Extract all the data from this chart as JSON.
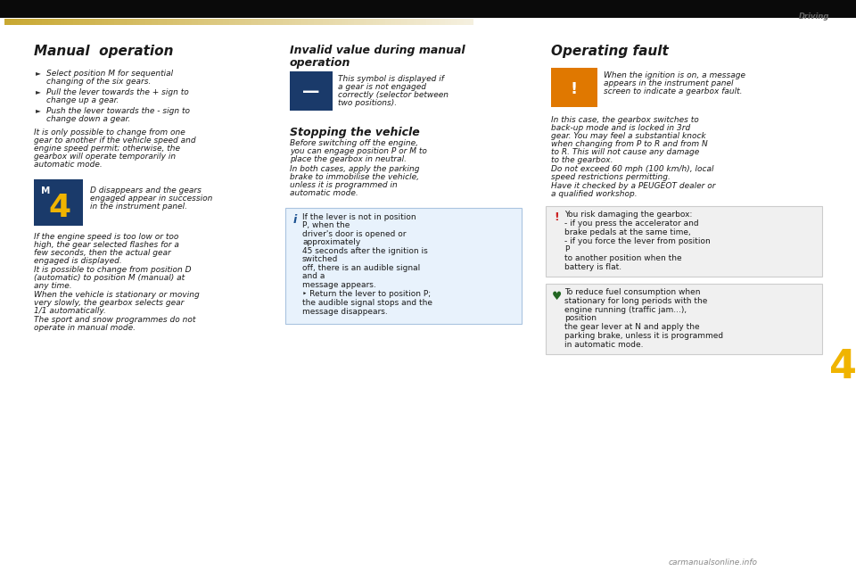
{
  "bg_color": "#0a0a0a",
  "page_bg": "#ffffff",
  "header_text": "Driving",
  "chapter_number": "4",
  "chapter_number_color": "#f0b400",
  "left_col_title": "Manual  operation",
  "left_col_bullets": [
    "Select position M for sequential changing of the six gears.",
    "Pull the lever towards the + sign to change up a gear.",
    "Push the lever towards the - sign to change down a gear."
  ],
  "left_col_body1": "It is only possible to change from one gear to another if the vehicle speed and engine speed permit; otherwise, the gearbox will operate temporarily in automatic mode.",
  "m4_text": "D disappears and the gears engaged appear in succession in the instrument panel.",
  "left_col_body2": "If the engine speed is too low or too high, the gear selected flashes for a few seconds, then the actual gear engaged is displayed.\nIt is possible to change from position D (automatic) to position M (manual) at any time.\nWhen the vehicle is stationary or moving very slowly, the gearbox selects gear 1/1 automatically.\nThe sport and snow programmes do not operate in manual mode.",
  "mid_col_title1": "Invalid value during manual\noperation",
  "mid_col_body1": "This symbol is displayed if a gear is not engaged correctly (selector between two positions).",
  "mid_col_title2": "Stopping the vehicle",
  "mid_col_body2": "Before switching off the engine, you can engage position P or M to place the gearbox in neutral.\nIn both cases, apply the parking brake to immobilise the vehicle, unless it is programmed in automatic mode.",
  "info_box_text": "If the lever is not in position P, when the\ndriver's door is opened or approximately\n45 seconds after the ignition is switched\noff, there is an audible signal and a\nmessage appears.\n‣ Return the lever to position P;\n   the audible signal stops and the\n   message disappears.",
  "right_col_title": "Operating fault",
  "right_col_orange_text": "When the ignition is on, a message\nappears in the instrument panel\nscreen to indicate a gearbox fault.",
  "right_col_body": "In this case, the gearbox switches to back-up mode and is locked in 3rd gear. You may feel a substantial knock when changing from P to R and from N to R. This will not cause any damage to the gearbox.\nDo not exceed 60 mph (100 km/h), local speed restrictions permitting.\nHave it checked by a PEUGEOT dealer or a qualified workshop.",
  "warning_box_text": "You risk damaging the gearbox:\n-     if you press the accelerator and\n       brake pedals at the same time,\n-     if you force the lever from position P\n       to another position when the\n       battery is flat.",
  "green_box_text": "To reduce fuel consumption when\nstationary for long periods with the\nengine running (traffic jam...), position\nthe gear lever at N and apply the\nparking brake, unless it is programmed\nin automatic mode."
}
